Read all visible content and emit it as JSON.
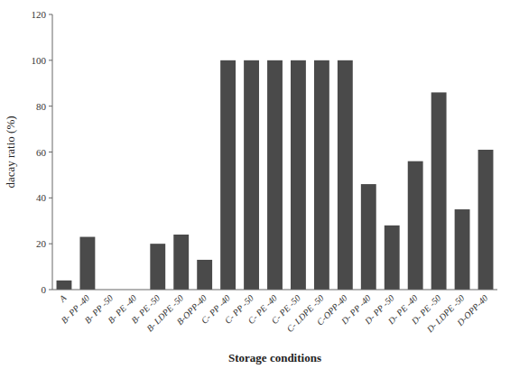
{
  "chart_data": {
    "type": "bar",
    "categories": [
      "A",
      "B- PP -40",
      "B- PP -50",
      "B- PE -40",
      "B- PE -50",
      "B- LDPE -50",
      "B-OPP-40",
      "C- PP -40",
      "C- PP -50",
      "C- PE -40",
      "C- PE -50",
      "C- LDPE -50",
      "C-OPP-40",
      "D- PP -40",
      "D- PP -50",
      "D- PE -40",
      "D- PE -50",
      "D- LDPE -50",
      "D-OPP-40"
    ],
    "values": [
      4,
      23,
      0,
      0,
      20,
      24,
      13,
      100,
      100,
      100,
      100,
      100,
      100,
      46,
      28,
      56,
      86,
      35,
      61
    ],
    "color": "#4a4a4a",
    "xlabel": "Storage conditions",
    "ylabel": "dacay ratio (%)",
    "ylim": [
      0,
      120
    ],
    "yticks": [
      0,
      20,
      40,
      60,
      80,
      100,
      120
    ],
    "grid": false
  }
}
